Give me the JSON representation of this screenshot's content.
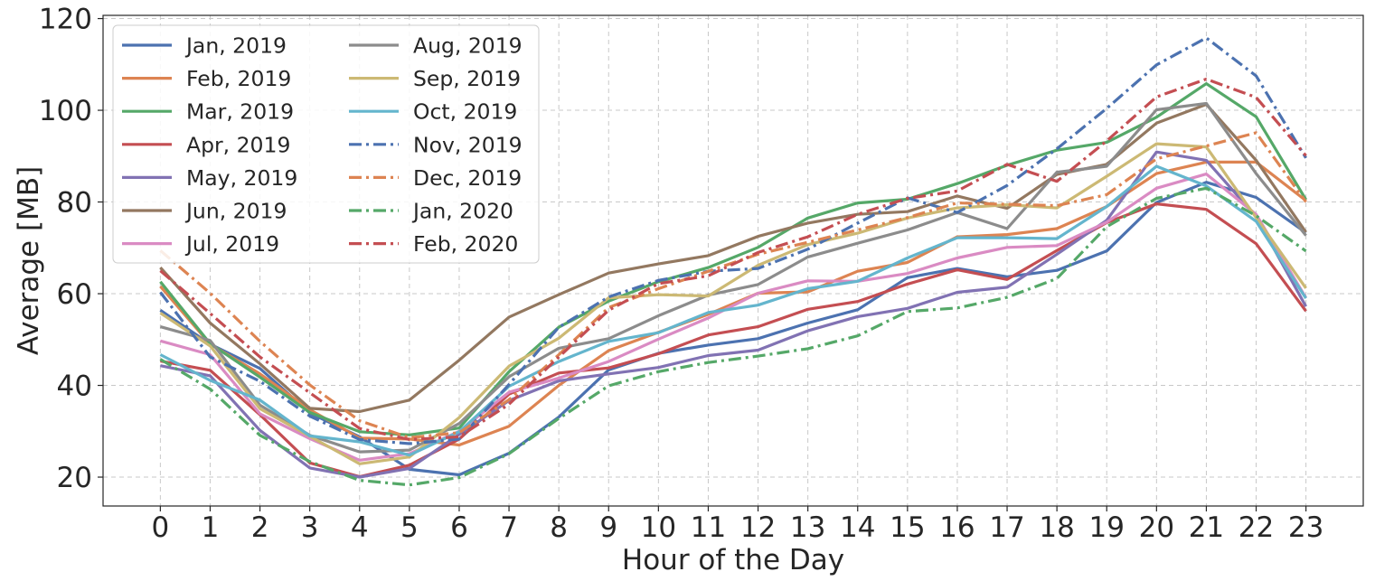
{
  "chart_data": {
    "type": "line",
    "title": "",
    "xlabel": "Hour of the Day",
    "ylabel": "Average [MB]",
    "x": [
      0,
      1,
      2,
      3,
      4,
      5,
      6,
      7,
      8,
      9,
      10,
      11,
      12,
      13,
      14,
      15,
      16,
      17,
      18,
      19,
      20,
      21,
      22,
      23
    ],
    "xticks": [
      "0",
      "1",
      "2",
      "3",
      "4",
      "5",
      "6",
      "7",
      "8",
      "9",
      "10",
      "11",
      "12",
      "13",
      "14",
      "15",
      "16",
      "17",
      "18",
      "19",
      "20",
      "21",
      "22",
      "23"
    ],
    "xlim": [
      -1.15,
      24.15
    ],
    "ylim": [
      13.7,
      120.7
    ],
    "yticks": [
      20,
      40,
      60,
      80,
      100,
      120
    ],
    "grid": true,
    "legend": {
      "placement": "top-left",
      "columns": 2
    },
    "series": [
      {
        "name": "Jan, 2019",
        "color": "#4c72b0",
        "dash": "solid",
        "values": [
          56.4,
          49.0,
          43.7,
          34.0,
          28.8,
          21.7,
          20.5,
          25.2,
          33.1,
          43.4,
          47.0,
          48.8,
          50.2,
          53.6,
          56.5,
          63.5,
          65.5,
          63.7,
          65.1,
          69.3,
          79.9,
          84.3,
          81.0,
          73.3
        ]
      },
      {
        "name": "Feb, 2019",
        "color": "#dd8452",
        "dash": "solid",
        "values": [
          61.6,
          49.0,
          42.5,
          34.7,
          28.5,
          28.3,
          27.0,
          31.1,
          40.0,
          47.6,
          51.6,
          55.5,
          60.1,
          60.4,
          64.9,
          66.8,
          72.4,
          72.9,
          74.2,
          79.0,
          86.2,
          88.7,
          88.7,
          80.3
        ]
      },
      {
        "name": "Mar, 2019",
        "color": "#55a868",
        "dash": "solid",
        "values": [
          62.6,
          49.1,
          41.8,
          34.1,
          29.9,
          29.2,
          30.7,
          43.0,
          52.7,
          58.4,
          62.6,
          65.7,
          70.1,
          76.5,
          79.8,
          80.6,
          84.0,
          88.0,
          91.3,
          93.0,
          98.5,
          105.8,
          98.6,
          80.5
        ]
      },
      {
        "name": "Apr, 2019",
        "color": "#c44e52",
        "dash": "solid",
        "values": [
          45.3,
          43.3,
          33.6,
          23.1,
          20.1,
          22.6,
          28.3,
          38.1,
          42.7,
          43.8,
          46.9,
          51.0,
          52.8,
          56.6,
          58.3,
          62.1,
          65.2,
          63.1,
          69.4,
          75.5,
          79.6,
          78.4,
          70.9,
          56.2
        ]
      },
      {
        "name": "May, 2019",
        "color": "#8172b3",
        "dash": "solid",
        "values": [
          44.3,
          42.1,
          30.2,
          22.0,
          20.0,
          21.9,
          29.3,
          36.7,
          41.0,
          42.5,
          43.9,
          46.5,
          47.7,
          51.9,
          55.0,
          56.8,
          60.3,
          61.4,
          68.6,
          76.0,
          90.9,
          89.1,
          76.8,
          57.2
        ]
      },
      {
        "name": "Jun, 2019",
        "color": "#937860",
        "dash": "solid",
        "values": [
          65.7,
          53.6,
          44.7,
          35.0,
          34.3,
          36.8,
          45.5,
          54.9,
          59.8,
          64.5,
          66.5,
          68.3,
          72.5,
          75.4,
          77.3,
          77.9,
          81.3,
          78.6,
          86.0,
          88.2,
          97.2,
          101.3,
          89.1,
          73.4
        ]
      },
      {
        "name": "Jul, 2019",
        "color": "#da8bc3",
        "dash": "solid",
        "values": [
          49.7,
          46.7,
          33.8,
          28.4,
          23.7,
          25.1,
          30.0,
          38.5,
          41.6,
          45.2,
          50.1,
          54.7,
          60.1,
          62.8,
          62.7,
          64.4,
          67.8,
          70.1,
          70.5,
          75.6,
          83.0,
          86.1,
          77.3,
          59.1
        ]
      },
      {
        "name": "Aug, 2019",
        "color": "#8c8c8c",
        "dash": "solid",
        "values": [
          52.8,
          49.8,
          35.7,
          29.1,
          25.5,
          25.9,
          31.7,
          41.9,
          48.1,
          50.2,
          55.2,
          59.7,
          62.0,
          68.0,
          71.0,
          73.9,
          77.7,
          74.2,
          86.5,
          87.8,
          100.1,
          101.5,
          86.2,
          72.7
        ]
      },
      {
        "name": "Sep, 2019",
        "color": "#ccb974",
        "dash": "solid",
        "values": [
          55.8,
          48.6,
          34.9,
          28.9,
          22.9,
          24.4,
          33.0,
          44.2,
          50.3,
          59.1,
          59.8,
          59.5,
          66.2,
          70.7,
          73.2,
          76.5,
          78.7,
          79.4,
          78.7,
          85.6,
          92.7,
          92.0,
          76.6,
          61.2
        ]
      },
      {
        "name": "Oct, 2019",
        "color": "#64b5cd",
        "dash": "solid",
        "values": [
          46.7,
          41.1,
          36.8,
          29.0,
          27.7,
          24.8,
          29.9,
          39.8,
          45.2,
          49.6,
          51.5,
          55.9,
          57.5,
          61.1,
          62.7,
          67.8,
          72.2,
          72.2,
          72.0,
          79.0,
          87.8,
          83.5,
          75.8,
          59.0
        ]
      },
      {
        "name": "Nov, 2019",
        "color": "#4c72b0",
        "dash": "dashdot",
        "values": [
          60.3,
          46.2,
          40.9,
          33.3,
          28.2,
          27.3,
          28.3,
          40.2,
          52.7,
          59.3,
          62.9,
          64.9,
          65.5,
          69.7,
          75.4,
          80.9,
          77.7,
          83.6,
          91.6,
          100.4,
          109.9,
          115.8,
          107.5,
          89.6
        ]
      },
      {
        "name": "Dec, 2019",
        "color": "#dd8452",
        "dash": "dashdot",
        "values": [
          69.4,
          60.1,
          49.6,
          40.1,
          32.3,
          28.6,
          29.7,
          36.9,
          46.7,
          57.0,
          61.1,
          64.9,
          68.6,
          71.2,
          73.9,
          76.6,
          79.8,
          79.5,
          79.2,
          81.6,
          89.4,
          92.2,
          95.1,
          80.0
        ]
      },
      {
        "name": "Jan, 2020",
        "color": "#55a868",
        "dash": "dashdot",
        "values": [
          45.7,
          39.2,
          29.1,
          23.4,
          19.3,
          18.3,
          19.9,
          25.1,
          32.8,
          39.9,
          43.0,
          45.0,
          46.4,
          48.0,
          50.8,
          56.1,
          56.9,
          59.2,
          63.3,
          74.6,
          80.8,
          83.0,
          77.0,
          69.3
        ]
      },
      {
        "name": "Feb, 2020",
        "color": "#c44e52",
        "dash": "dashdot",
        "values": [
          65.0,
          55.7,
          46.2,
          38.4,
          30.6,
          28.2,
          28.8,
          35.9,
          46.2,
          56.4,
          62.2,
          63.9,
          69.0,
          72.4,
          77.3,
          80.8,
          82.4,
          88.2,
          84.5,
          93.3,
          102.9,
          106.8,
          102.8,
          90.1
        ]
      }
    ]
  }
}
